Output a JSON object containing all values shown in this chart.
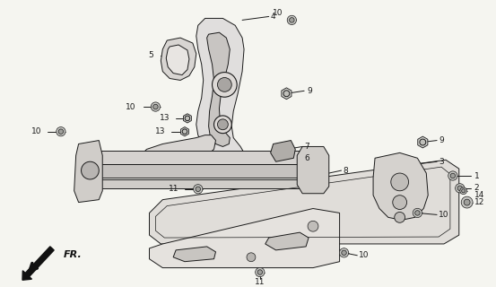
{
  "bg": "#f0f0f0",
  "lc": "#1a1a1a",
  "lw": 0.7,
  "fs": 6.5,
  "fig_w": 5.53,
  "fig_h": 3.2,
  "dpi": 100
}
